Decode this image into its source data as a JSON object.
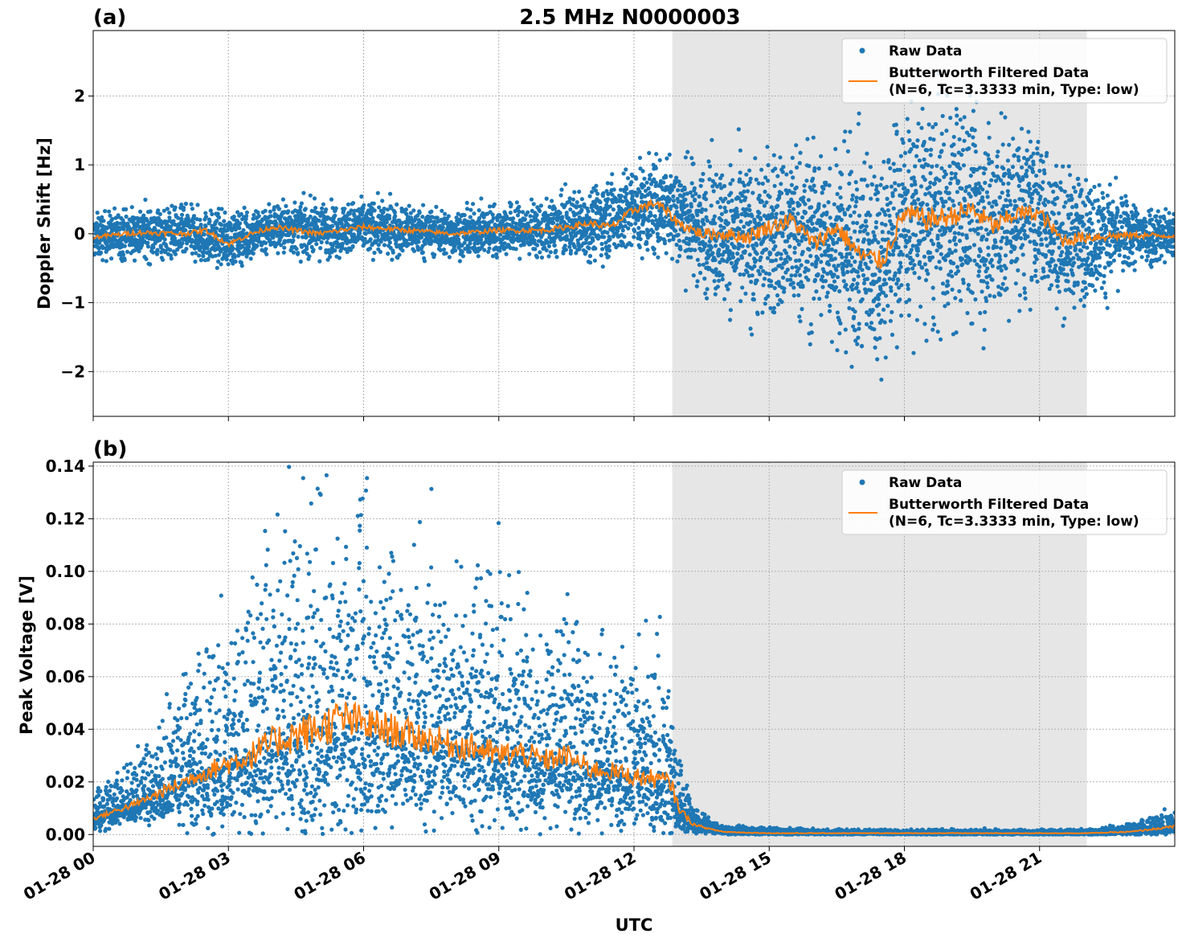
{
  "figure": {
    "title": "2.5 MHz N0000003",
    "xlabel": "UTC"
  },
  "colors": {
    "raw": "#1f77b4",
    "filtered": "#ff7f0e",
    "shade": "#e6e6e6",
    "grid": "#b0b0b0"
  },
  "chart_data": [
    {
      "type": "scatter",
      "panel_label": "(a)",
      "title": "2.5 MHz N0000003",
      "xlabel": "",
      "ylabel": "Doppler Shift [Hz]",
      "x_unit": "hours UTC on 01-28",
      "xlim": [
        0,
        24
      ],
      "ylim": [
        -2.65,
        2.95
      ],
      "yticks": [
        -2,
        -1,
        0,
        1,
        2
      ],
      "ytick_labels": [
        "−2",
        "−1",
        "0",
        "1",
        "2"
      ],
      "xticks": [
        0,
        3,
        6,
        9,
        12,
        15,
        18,
        21
      ],
      "xtick_labels_visible": false,
      "grid": true,
      "shaded_interval": [
        12.85,
        22.05
      ],
      "legend": {
        "placement": "top-right",
        "entries": [
          "Raw Data",
          "Butterworth Filtered Data\n(N=6, Tc=3.3333 min, Type: low)"
        ]
      },
      "series": [
        {
          "name": "Butterworth Filtered Data",
          "style": "line",
          "x": [
            0,
            1,
            2,
            2.5,
            3,
            3.5,
            4,
            5,
            6,
            7,
            8,
            9,
            10,
            11,
            11.5,
            12,
            12.5,
            13,
            13.5,
            14,
            14.5,
            15,
            15.5,
            16,
            16.5,
            17,
            17.5,
            18,
            18.5,
            19,
            19.5,
            20,
            20.5,
            21,
            21.5,
            22,
            23,
            24
          ],
          "y": [
            -0.05,
            0.02,
            0.0,
            0.05,
            -0.15,
            0.0,
            0.1,
            0.0,
            0.1,
            0.05,
            0.0,
            0.05,
            0.05,
            0.15,
            0.1,
            0.35,
            0.45,
            0.15,
            0.0,
            0.0,
            -0.05,
            0.1,
            0.2,
            -0.15,
            0.1,
            -0.3,
            -0.4,
            0.3,
            0.2,
            0.25,
            0.35,
            0.1,
            0.3,
            0.3,
            -0.1,
            -0.05,
            -0.02,
            -0.03
          ]
        },
        {
          "name": "Raw Data",
          "style": "dots",
          "x": [
            0,
            1,
            2,
            3,
            4,
            5,
            6,
            7,
            8,
            9,
            10,
            11,
            12,
            12.8,
            13.5,
            14.5,
            15.5,
            16.5,
            17,
            17.5,
            18,
            18.5,
            19,
            19.5,
            20,
            20.5,
            21,
            21.5,
            22,
            22.5,
            23,
            24
          ],
          "y": [
            -0.05,
            0.02,
            0.0,
            -0.1,
            0.1,
            0.05,
            0.1,
            0.05,
            0.0,
            0.05,
            0.05,
            0.15,
            0.35,
            0.4,
            0.1,
            -0.1,
            0.0,
            -0.1,
            -0.3,
            -0.3,
            0.3,
            0.2,
            0.25,
            0.35,
            0.1,
            0.3,
            0.3,
            -0.1,
            -0.05,
            -0.05,
            -0.02,
            -0.03
          ],
          "spread": [
            0.25,
            0.3,
            0.3,
            0.3,
            0.3,
            0.3,
            0.3,
            0.3,
            0.25,
            0.3,
            0.3,
            0.4,
            0.5,
            0.6,
            0.7,
            0.9,
            1.0,
            1.1,
            1.2,
            1.25,
            1.25,
            1.3,
            1.3,
            1.3,
            1.2,
            1.0,
            0.9,
            0.8,
            0.7,
            0.6,
            0.4,
            0.3
          ]
        }
      ]
    },
    {
      "type": "scatter",
      "panel_label": "(b)",
      "title": "",
      "xlabel": "UTC",
      "ylabel": "Peak Voltage [V]",
      "x_unit": "hours UTC on 01-28",
      "xlim": [
        0,
        24
      ],
      "ylim": [
        -0.0045,
        0.1415
      ],
      "yticks": [
        0.0,
        0.02,
        0.04,
        0.06,
        0.08,
        0.1,
        0.12,
        0.14
      ],
      "ytick_labels": [
        "0.00",
        "0.02",
        "0.04",
        "0.06",
        "0.08",
        "0.10",
        "0.12",
        "0.14"
      ],
      "xticks": [
        0,
        3,
        6,
        9,
        12,
        15,
        18,
        21
      ],
      "xtick_labels": [
        "01-28 00",
        "01-28 03",
        "01-28 06",
        "01-28 09",
        "01-28 12",
        "01-28 15",
        "01-28 18",
        "01-28 21"
      ],
      "grid": true,
      "shaded_interval": [
        12.85,
        22.05
      ],
      "legend": {
        "placement": "top-right",
        "entries": [
          "Raw Data",
          "Butterworth Filtered Data\n(N=6, Tc=3.3333 min, Type: low)"
        ]
      },
      "series": [
        {
          "name": "Butterworth Filtered Data",
          "style": "line",
          "x": [
            0,
            0.5,
            1,
            1.5,
            2,
            2.5,
            3,
            3.5,
            4,
            4.5,
            5,
            5.5,
            6,
            6.5,
            7,
            7.5,
            8,
            8.5,
            9,
            9.5,
            10,
            10.5,
            11,
            11.5,
            12,
            12.5,
            12.8,
            13.0,
            13.3,
            13.7,
            14,
            15,
            16,
            17,
            18,
            19,
            20,
            21,
            22,
            23,
            23.5,
            24
          ],
          "y": [
            0.006,
            0.009,
            0.012,
            0.016,
            0.02,
            0.024,
            0.027,
            0.03,
            0.035,
            0.038,
            0.04,
            0.044,
            0.042,
            0.04,
            0.038,
            0.036,
            0.034,
            0.033,
            0.03,
            0.031,
            0.028,
            0.03,
            0.025,
            0.024,
            0.022,
            0.021,
            0.02,
            0.01,
            0.004,
            0.002,
            0.001,
            0.0005,
            0.0005,
            0.0005,
            0.0005,
            0.0005,
            0.0005,
            0.0005,
            0.0005,
            0.001,
            0.002,
            0.003
          ]
        },
        {
          "name": "Raw Data",
          "style": "dots",
          "x": [
            0,
            0.5,
            1,
            1.5,
            2,
            2.5,
            3,
            3.5,
            4,
            4.5,
            5,
            5.5,
            6,
            6.5,
            7,
            7.5,
            8,
            8.5,
            9,
            9.5,
            10,
            10.5,
            11,
            11.5,
            12,
            12.5,
            12.8,
            13.0,
            13.3,
            13.7,
            14,
            16,
            18,
            20,
            22,
            23,
            23.5,
            24
          ],
          "y": [
            0.006,
            0.009,
            0.012,
            0.016,
            0.02,
            0.024,
            0.027,
            0.03,
            0.035,
            0.038,
            0.04,
            0.044,
            0.042,
            0.04,
            0.038,
            0.036,
            0.034,
            0.033,
            0.03,
            0.031,
            0.028,
            0.03,
            0.025,
            0.024,
            0.022,
            0.021,
            0.02,
            0.01,
            0.004,
            0.002,
            0.001,
            0.0005,
            0.0005,
            0.0005,
            0.0005,
            0.001,
            0.002,
            0.003
          ],
          "spread": [
            0.004,
            0.006,
            0.008,
            0.012,
            0.016,
            0.02,
            0.025,
            0.03,
            0.035,
            0.04,
            0.042,
            0.045,
            0.04,
            0.038,
            0.035,
            0.033,
            0.03,
            0.03,
            0.028,
            0.028,
            0.025,
            0.025,
            0.022,
            0.02,
            0.02,
            0.02,
            0.02,
            0.01,
            0.003,
            0.0015,
            0.001,
            0.0006,
            0.0006,
            0.0006,
            0.0006,
            0.0012,
            0.002,
            0.003
          ]
        }
      ]
    }
  ]
}
